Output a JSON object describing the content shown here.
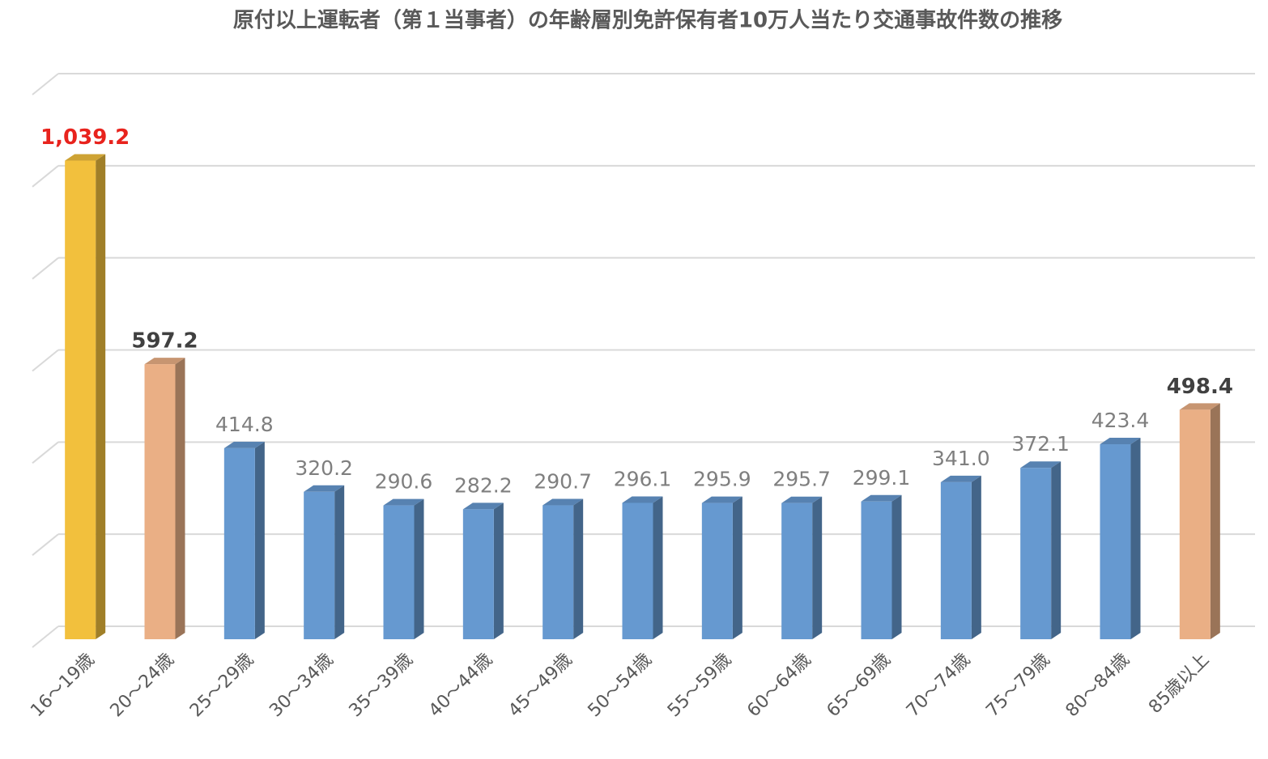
{
  "chart_data": {
    "type": "bar",
    "title": "原付以上運転者（第１当事者）の年齢層別免許保有者10万人当たり交通事故件数の推移",
    "categories": [
      "16～19歳",
      "20～24歳",
      "25～29歳",
      "30～34歳",
      "35～39歳",
      "40～44歳",
      "45～49歳",
      "50～54歳",
      "55～59歳",
      "60～64歳",
      "65～69歳",
      "70～74歳",
      "75～79歳",
      "80～84歳",
      "85歳以上"
    ],
    "values": [
      1039.2,
      597.2,
      414.8,
      320.2,
      290.6,
      282.2,
      290.7,
      296.1,
      295.9,
      295.7,
      299.1,
      341.0,
      372.1,
      423.4,
      498.4
    ],
    "value_labels": [
      "1,039.2",
      "597.2",
      "414.8",
      "320.2",
      "290.6",
      "282.2",
      "290.7",
      "296.1",
      "295.9",
      "295.7",
      "299.1",
      "341.0",
      "372.1",
      "423.4",
      "498.4"
    ],
    "colors": [
      "#f2c03d",
      "#eaaf85",
      "#6699d0",
      "#6699d0",
      "#6699d0",
      "#6699d0",
      "#6699d0",
      "#6699d0",
      "#6699d0",
      "#6699d0",
      "#6699d0",
      "#6699d0",
      "#6699d0",
      "#6699d0",
      "#eaaf85"
    ],
    "value_label_colors": [
      "#e8231d",
      "#404040",
      "#7f7f7f",
      "#7f7f7f",
      "#7f7f7f",
      "#7f7f7f",
      "#7f7f7f",
      "#7f7f7f",
      "#7f7f7f",
      "#7f7f7f",
      "#7f7f7f",
      "#7f7f7f",
      "#7f7f7f",
      "#7f7f7f",
      "#404040"
    ],
    "ylim": [
      0,
      1200
    ],
    "yticks": [
      0,
      200,
      400,
      600,
      800,
      1000,
      1200
    ],
    "grid": true,
    "y_tick_labels": false
  }
}
